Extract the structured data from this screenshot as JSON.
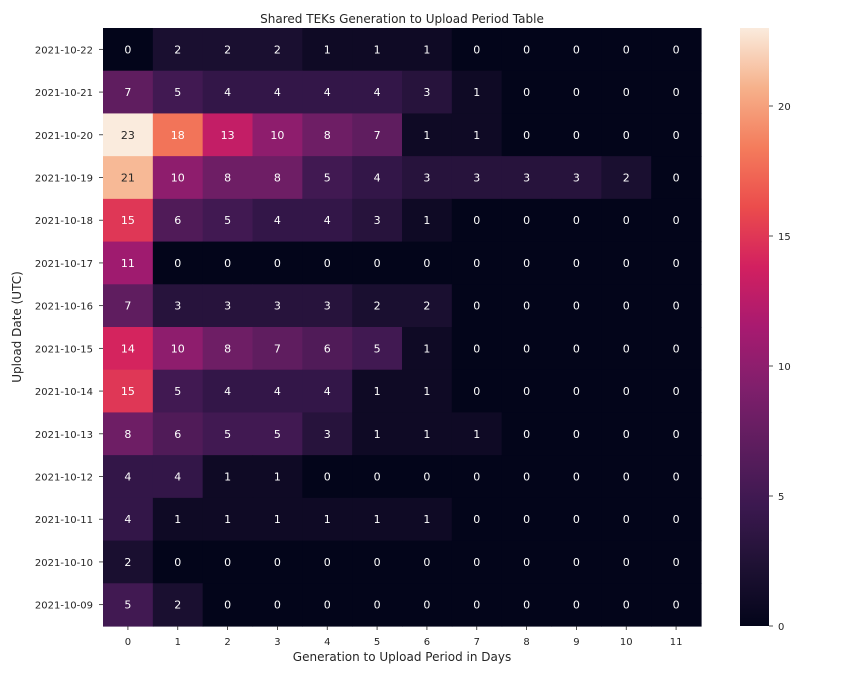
{
  "chart_data": {
    "type": "heatmap",
    "title": "Shared TEKs Generation to Upload Period Table",
    "xlabel": "Generation to Upload Period in Days",
    "ylabel": "Upload Date (UTC)",
    "x_categories": [
      "0",
      "1",
      "2",
      "3",
      "4",
      "5",
      "6",
      "7",
      "8",
      "9",
      "10",
      "11"
    ],
    "y_categories": [
      "2021-10-22",
      "2021-10-21",
      "2021-10-20",
      "2021-10-19",
      "2021-10-18",
      "2021-10-17",
      "2021-10-16",
      "2021-10-15",
      "2021-10-14",
      "2021-10-13",
      "2021-10-12",
      "2021-10-11",
      "2021-10-10",
      "2021-10-09"
    ],
    "values": [
      [
        0,
        2,
        2,
        2,
        1,
        1,
        1,
        0,
        0,
        0,
        0,
        0
      ],
      [
        7,
        5,
        4,
        4,
        4,
        4,
        3,
        1,
        0,
        0,
        0,
        0
      ],
      [
        23,
        18,
        13,
        10,
        8,
        7,
        1,
        1,
        0,
        0,
        0,
        0
      ],
      [
        21,
        10,
        8,
        8,
        5,
        4,
        3,
        3,
        3,
        3,
        2,
        0
      ],
      [
        15,
        6,
        5,
        4,
        4,
        3,
        1,
        0,
        0,
        0,
        0,
        0
      ],
      [
        11,
        0,
        0,
        0,
        0,
        0,
        0,
        0,
        0,
        0,
        0,
        0
      ],
      [
        7,
        3,
        3,
        3,
        3,
        2,
        2,
        0,
        0,
        0,
        0,
        0
      ],
      [
        14,
        10,
        8,
        7,
        6,
        5,
        1,
        0,
        0,
        0,
        0,
        0
      ],
      [
        15,
        5,
        4,
        4,
        4,
        1,
        1,
        0,
        0,
        0,
        0,
        0
      ],
      [
        8,
        6,
        5,
        5,
        3,
        1,
        1,
        1,
        0,
        0,
        0,
        0
      ],
      [
        4,
        4,
        1,
        1,
        0,
        0,
        0,
        0,
        0,
        0,
        0,
        0
      ],
      [
        4,
        1,
        1,
        1,
        1,
        1,
        1,
        0,
        0,
        0,
        0,
        0
      ],
      [
        2,
        0,
        0,
        0,
        0,
        0,
        0,
        0,
        0,
        0,
        0,
        0
      ],
      [
        5,
        2,
        0,
        0,
        0,
        0,
        0,
        0,
        0,
        0,
        0,
        0
      ]
    ],
    "colorbar": {
      "min": 0,
      "max": 23,
      "ticks": [
        0,
        5,
        10,
        15,
        20
      ]
    },
    "colormap": "rocket",
    "grid": false,
    "legend": "colorbar-right"
  }
}
